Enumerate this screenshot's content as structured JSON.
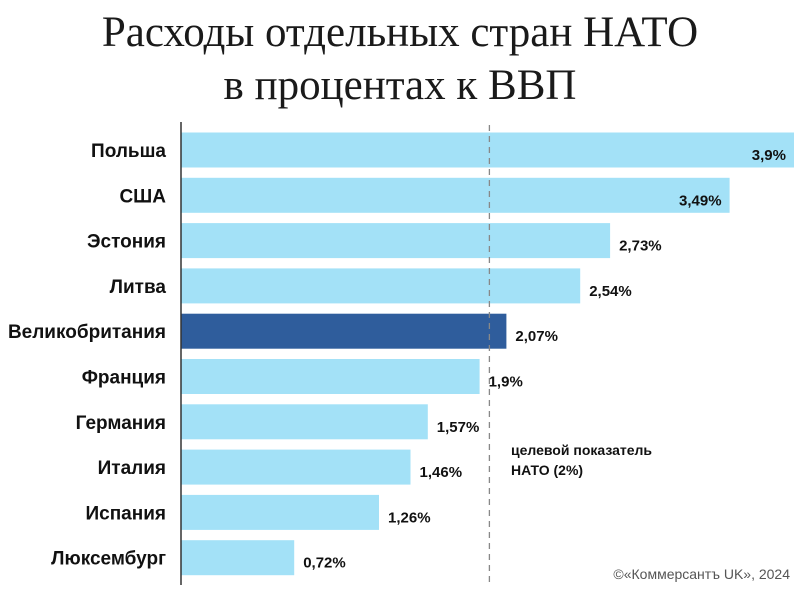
{
  "title_lines": [
    "Расходы отдельных стран НАТО",
    "в процентах к ВВП"
  ],
  "chart_data": {
    "type": "bar",
    "orientation": "horizontal",
    "categories": [
      "Польша",
      "США",
      "Эстония",
      "Литва",
      "Великобритания",
      "Франция",
      "Германия",
      "Италия",
      "Испания",
      "Люксембург"
    ],
    "values": [
      3.9,
      3.49,
      2.73,
      2.54,
      2.07,
      1.9,
      1.57,
      1.46,
      1.26,
      0.72
    ],
    "value_labels": [
      "3,9%",
      "3,49%",
      "2,73%",
      "2,54%",
      "2,07%",
      "1,9%",
      "1,57%",
      "1,46%",
      "1,26%",
      "0,72%"
    ],
    "highlighted": "Великобритания",
    "reference_line": {
      "value": 2,
      "label_lines": [
        "целевой показатель",
        "НАТО (2%)"
      ]
    },
    "xlim": [
      0,
      3.9
    ],
    "colors": {
      "bar": "#a3e1f7",
      "highlight": "#2f5d9c",
      "reference_line": "#888888",
      "axis": "#333333"
    }
  },
  "credit": "©«Коммерсантъ UK», 2024"
}
